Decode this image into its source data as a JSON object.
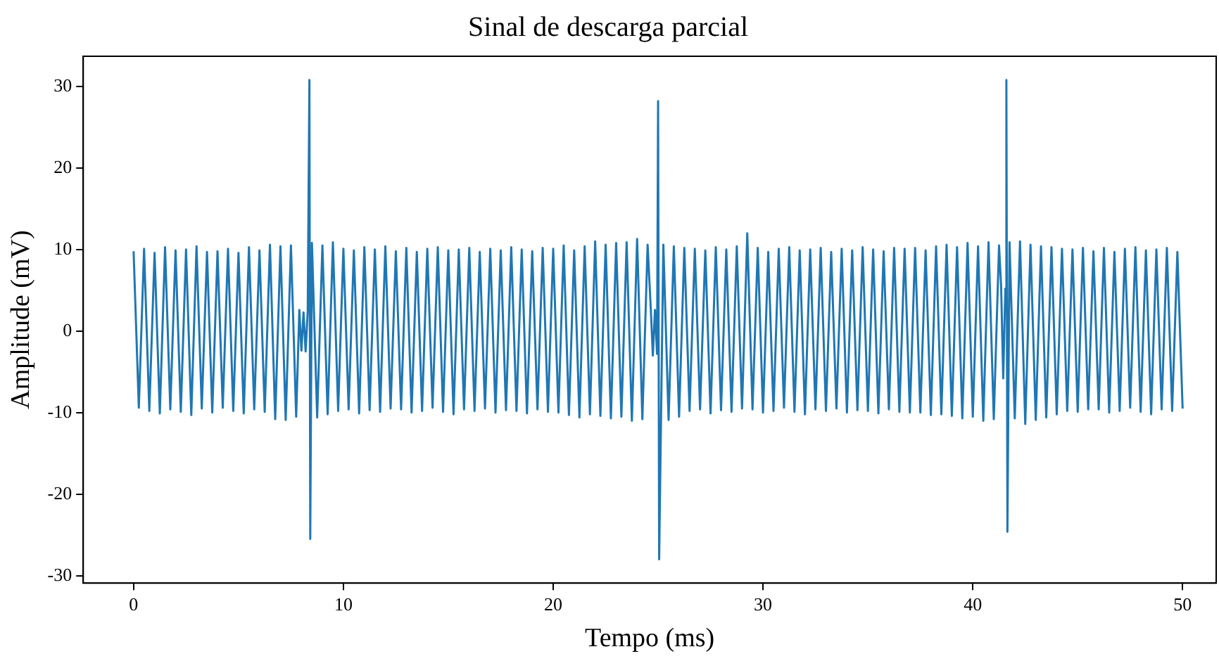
{
  "chart_data": {
    "type": "line",
    "title": "Sinal de descarga parcial",
    "xlabel": "Tempo (ms)",
    "ylabel": "Amplitude (mV)",
    "grid": false,
    "legend": false,
    "xlim": [
      -2.4,
      51.6
    ],
    "ylim": [
      -30.9,
      33.7
    ],
    "xticks": [
      0,
      10,
      20,
      30,
      40,
      50
    ],
    "yticks": [
      -30,
      -20,
      -10,
      0,
      10,
      20,
      30
    ],
    "series": [
      {
        "color": "#1f77b4",
        "x": [
          0,
          0.25,
          0.5,
          0.75,
          1,
          1.25,
          1.5,
          1.75,
          2,
          2.25,
          2.5,
          2.75,
          3,
          3.25,
          3.5,
          3.75,
          4,
          4.25,
          4.5,
          4.75,
          5,
          5.25,
          5.5,
          5.75,
          6,
          6.25,
          6.5,
          6.75,
          7,
          7.25,
          7.5,
          7.75,
          7.9,
          8.0,
          8.1,
          8.2,
          8.3,
          8.38,
          8.42,
          8.5,
          8.75,
          9,
          9.25,
          9.5,
          9.75,
          10,
          10.25,
          10.5,
          10.75,
          11,
          11.25,
          11.5,
          11.75,
          12,
          12.25,
          12.5,
          12.75,
          13,
          13.25,
          13.5,
          13.75,
          14,
          14.25,
          14.5,
          14.75,
          15,
          15.25,
          15.5,
          15.75,
          16,
          16.25,
          16.5,
          16.75,
          17,
          17.25,
          17.5,
          17.75,
          18,
          18.25,
          18.5,
          18.75,
          19,
          19.25,
          19.5,
          19.75,
          20,
          20.25,
          20.5,
          20.75,
          21,
          21.25,
          21.5,
          21.75,
          22,
          22.25,
          22.5,
          22.75,
          23,
          23.25,
          23.5,
          23.75,
          24,
          24.25,
          24.5,
          24.65,
          24.75,
          24.85,
          24.95,
          25.0,
          25.05,
          25.25,
          25.5,
          25.75,
          26,
          26.25,
          26.5,
          26.75,
          27,
          27.25,
          27.5,
          27.75,
          28,
          28.25,
          28.5,
          28.75,
          29,
          29.25,
          29.5,
          29.75,
          30,
          30.25,
          30.5,
          30.75,
          31,
          31.25,
          31.5,
          31.75,
          32,
          32.25,
          32.5,
          32.75,
          33,
          33.25,
          33.5,
          33.75,
          34,
          34.25,
          34.5,
          34.75,
          35,
          35.25,
          35.5,
          35.75,
          36,
          36.25,
          36.5,
          36.75,
          37,
          37.25,
          37.5,
          37.75,
          38,
          38.25,
          38.5,
          38.75,
          39,
          39.25,
          39.5,
          39.75,
          40,
          40.25,
          40.5,
          40.75,
          41,
          41.25,
          41.35,
          41.45,
          41.55,
          41.6,
          41.65,
          41.75,
          42,
          42.25,
          42.5,
          42.75,
          43,
          43.25,
          43.5,
          43.75,
          44,
          44.25,
          44.5,
          44.75,
          45,
          45.25,
          45.5,
          45.75,
          46,
          46.25,
          46.5,
          46.75,
          47,
          47.25,
          47.5,
          47.75,
          48,
          48.25,
          48.5,
          48.75,
          49,
          49.25,
          49.5,
          49.75,
          50
        ],
        "values": [
          9.8,
          -9.4,
          10.1,
          -9.8,
          9.6,
          -10.1,
          10.3,
          -9.6,
          9.9,
          -9.9,
          10.0,
          -10.3,
          10.4,
          -9.5,
          9.7,
          -10.0,
          9.8,
          -9.4,
          10.1,
          -9.8,
          9.6,
          -10.1,
          10.3,
          -9.6,
          9.9,
          -9.9,
          10.6,
          -10.8,
          10.4,
          -10.9,
          10.5,
          -10.5,
          2.6,
          -2.4,
          2.3,
          -2.5,
          2.4,
          30.8,
          -25.5,
          10.8,
          -10.6,
          10.5,
          -10.2,
          10.9,
          -9.8,
          10.1,
          -9.6,
          9.9,
          -10.1,
          10.3,
          -9.7,
          10.0,
          -9.9,
          10.4,
          -9.5,
          9.8,
          -9.6,
          10.2,
          -10.0,
          9.7,
          -9.8,
          10.1,
          -9.4,
          10.3,
          -9.9,
          9.9,
          -10.2,
          10.0,
          -9.6,
          10.2,
          -9.8,
          9.7,
          -9.5,
          10.1,
          -10.0,
          9.9,
          -9.7,
          10.3,
          -9.8,
          10.0,
          -10.1,
          9.8,
          -9.6,
          10.2,
          -9.9,
          10.1,
          -10.0,
          10.5,
          -10.3,
          9.9,
          -10.6,
          10.4,
          -10.2,
          11.0,
          -10.4,
          10.6,
          -10.7,
          10.8,
          -10.5,
          10.9,
          -11.0,
          11.3,
          -10.8,
          10.6,
          2.8,
          -3.0,
          2.6,
          -2.8,
          28.2,
          -28.0,
          10.6,
          -10.9,
          10.4,
          -10.5,
          10.2,
          -9.8,
          10.1,
          -9.6,
          9.9,
          -10.1,
          10.3,
          -9.7,
          10.0,
          -9.9,
          10.4,
          -9.5,
          12.0,
          -9.6,
          10.2,
          -10.0,
          9.7,
          -9.8,
          10.1,
          -9.4,
          10.3,
          -9.9,
          9.9,
          -10.2,
          10.0,
          -9.6,
          10.2,
          -9.8,
          9.7,
          -9.5,
          10.1,
          -10.0,
          9.9,
          -9.7,
          10.3,
          -9.8,
          10.0,
          -10.1,
          9.8,
          -9.6,
          10.2,
          -9.9,
          10.1,
          -10.0,
          10.2,
          -10.0,
          9.9,
          -10.3,
          10.4,
          -10.2,
          10.6,
          -10.4,
          10.3,
          -10.7,
          10.8,
          -10.5,
          10.4,
          -11.0,
          10.9,
          -10.8,
          10.5,
          5.5,
          -5.8,
          5.2,
          30.8,
          -24.6,
          10.9,
          -10.7,
          11.0,
          -11.4,
          10.6,
          -10.9,
          10.4,
          -10.6,
          10.3,
          -10.2,
          10.1,
          -9.8,
          10.0,
          -9.9,
          10.2,
          -9.6,
          9.8,
          -9.6,
          10.2,
          -10.0,
          9.7,
          -9.8,
          10.1,
          -9.4,
          10.3,
          -9.9,
          9.9,
          -10.2,
          10.0,
          -9.6,
          10.2,
          -9.8,
          9.7,
          -9.5
        ]
      }
    ]
  }
}
